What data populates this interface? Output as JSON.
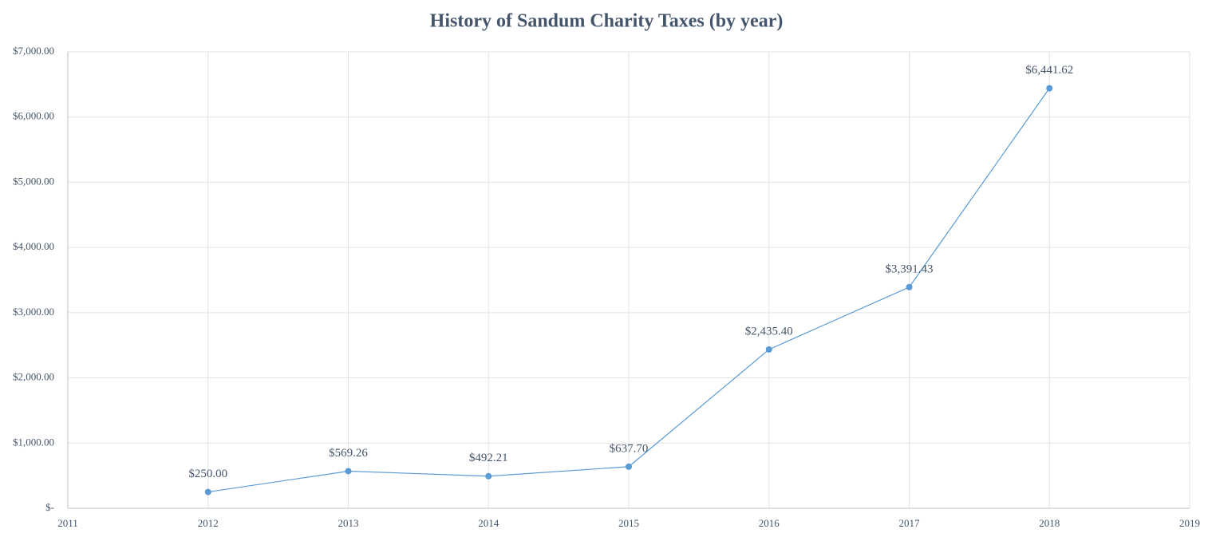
{
  "chart_data": {
    "type": "line",
    "title": "History of Sandum Charity Taxes (by year)",
    "x": [
      2012,
      2013,
      2014,
      2015,
      2016,
      2017,
      2018
    ],
    "values": [
      250.0,
      569.26,
      492.21,
      637.7,
      2435.4,
      3391.43,
      6441.62
    ],
    "value_labels": [
      "$250.00",
      "$569.26",
      "$492.21",
      "$637.70",
      "$2,435.40",
      "$3,391.43",
      "$6,441.62"
    ],
    "color": "#5b9bd5",
    "xlim": [
      2011,
      2019
    ],
    "xticks": [
      2011,
      2012,
      2013,
      2014,
      2015,
      2016,
      2017,
      2018,
      2019
    ],
    "ylim": [
      0,
      7000
    ],
    "yticks": [
      {
        "value": 0,
        "label": "$-"
      },
      {
        "value": 1000,
        "label": "$1,000.00"
      },
      {
        "value": 2000,
        "label": "$2,000.00"
      },
      {
        "value": 3000,
        "label": "$3,000.00"
      },
      {
        "value": 4000,
        "label": "$4,000.00"
      },
      {
        "value": 5000,
        "label": "$5,000.00"
      },
      {
        "value": 6000,
        "label": "$6,000.00"
      },
      {
        "value": 7000,
        "label": "$7,000.00"
      }
    ],
    "grid": true
  }
}
